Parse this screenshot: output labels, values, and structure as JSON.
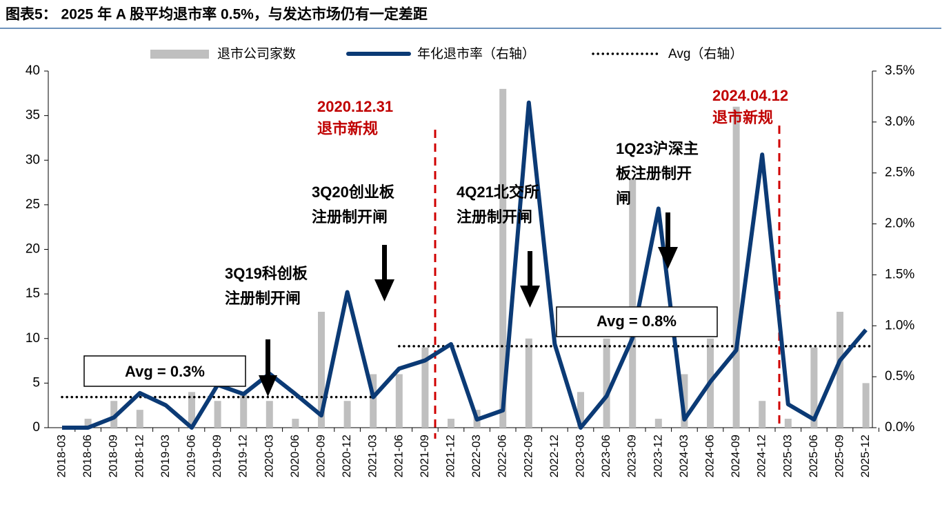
{
  "chart_data": {
    "type": "bar_line",
    "title": "图表5： 2025 年 A 股平均退市率 0.5%，与发达市场仍有一定差距",
    "categories": [
      "2018-03",
      "2018-06",
      "2018-09",
      "2018-12",
      "2019-03",
      "2019-06",
      "2019-09",
      "2019-12",
      "2020-03",
      "2020-06",
      "2020-09",
      "2020-12",
      "2021-03",
      "2021-06",
      "2021-09",
      "2021-12",
      "2022-03",
      "2022-06",
      "2022-09",
      "2022-12",
      "2023-03",
      "2023-06",
      "2023-09",
      "2023-12",
      "2024-03",
      "2024-06",
      "2024-09",
      "2024-12",
      "2025-03",
      "2025-06",
      "2025-09",
      "2025-12"
    ],
    "series": [
      {
        "name": "退市公司家数",
        "color": "#bfbfbf",
        "kind": "bar",
        "axis": "y",
        "values": [
          0,
          1,
          3,
          2,
          0,
          4,
          3,
          4,
          3,
          1,
          13,
          3,
          6,
          6,
          9,
          1,
          2,
          38,
          10,
          0,
          4,
          10,
          28,
          1,
          6,
          10,
          36,
          3,
          1,
          9,
          13,
          5
        ]
      },
      {
        "name": "年化退市率（右轴）",
        "color": "#0b3a75",
        "kind": "line",
        "axis": "y2",
        "values": [
          0,
          0,
          0.1,
          0.34,
          0.22,
          0,
          0.42,
          0.33,
          0.53,
          0.33,
          0.12,
          1.33,
          0.3,
          0.58,
          0.66,
          0.82,
          0.08,
          0.17,
          3.19,
          0.82,
          0,
          0.31,
          0.88,
          2.15,
          0.08,
          0.45,
          0.76,
          2.68,
          0.23,
          0.08,
          0.66,
          0.96
        ]
      },
      {
        "name": "Avg（右轴）",
        "color": "#000000",
        "kind": "dotted",
        "axis": "y2",
        "values": [
          0.3,
          0.3,
          0.3,
          0.3,
          0.3,
          0.3,
          0.3,
          0.3,
          0.3,
          0.3,
          0.3,
          0.3,
          0.3,
          0.8,
          0.8,
          0.8,
          0.8,
          0.8,
          0.8,
          0.8,
          0.8,
          0.8,
          0.8,
          0.8,
          0.8,
          0.8,
          0.8,
          0.8,
          0.8,
          0.8,
          0.8,
          0.8
        ]
      }
    ],
    "ylim": [
      0,
      40
    ],
    "yticks": [
      0,
      5,
      10,
      15,
      20,
      25,
      30,
      35,
      40
    ],
    "y2lim": [
      0,
      3.5
    ],
    "y2ticks": [
      {
        "value": 0,
        "label": "0.0%"
      },
      {
        "value": 0.5,
        "label": "0.5%"
      },
      {
        "value": 1,
        "label": "1.0%"
      },
      {
        "value": 1.5,
        "label": "1.5%"
      },
      {
        "value": 2,
        "label": "2.0%"
      },
      {
        "value": 2.5,
        "label": "2.5%"
      },
      {
        "value": 3,
        "label": "3.0%"
      },
      {
        "value": 3.5,
        "label": "3.5%"
      }
    ],
    "annotations": [
      {
        "lines": [
          "2020.12.31",
          "退市新规"
        ],
        "color": "#c00000"
      },
      {
        "lines": [
          "2024.04.12",
          "退市新规"
        ],
        "color": "#c00000"
      },
      {
        "lines": [
          "3Q19科创板",
          "注册制开闸"
        ],
        "color": "#000000"
      },
      {
        "lines": [
          "3Q20创业板",
          "注册制开闸"
        ],
        "color": "#000000"
      },
      {
        "lines": [
          "4Q21北交所",
          "注册制开闸"
        ],
        "color": "#000000"
      },
      {
        "lines": [
          "1Q23沪深主",
          "板注册制开",
          "闸"
        ],
        "color": "#000000"
      },
      {
        "lines": [
          "Avg = 0.3%"
        ],
        "color": "#000000"
      },
      {
        "lines": [
          "Avg = 0.8%"
        ],
        "color": "#000000"
      }
    ]
  }
}
